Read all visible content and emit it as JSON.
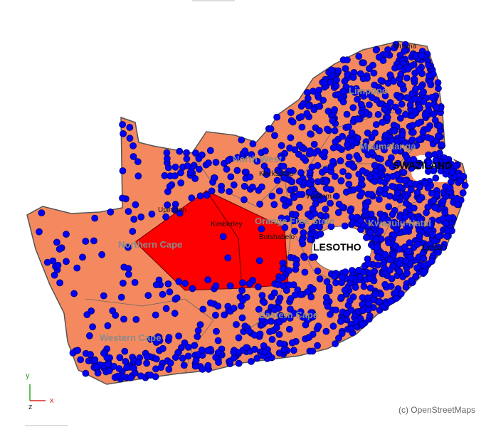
{
  "places": {
    "musina": "Musina",
    "limpopo": "Limpopo",
    "mpumalanga": "Mpumalanga",
    "swaziland": "SWAZILAND",
    "north_west": "North West",
    "klerksdorp": "Klerksdorp",
    "welkom": "Welkom",
    "upington": "Upington",
    "kimberley": "Kimberley",
    "northern_cape": "Northern Cape",
    "orange_free_state": "Orange Free State",
    "botshabelo": "Botshabelo",
    "lesotho": "LESOTHO",
    "kwazulu_natal": "Kwazulu-Natal",
    "durban": "Durban",
    "eastern_cape": "Eastern Cape",
    "western_cape": "Western Cape"
  },
  "attribution": "(c) OpenStreetMaps",
  "axes": {
    "x": "x",
    "y": "y",
    "z": "z"
  }
}
